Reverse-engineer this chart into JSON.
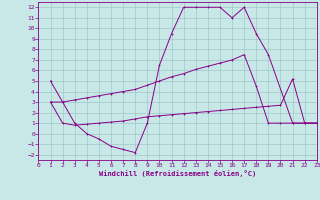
{
  "xlabel": "Windchill (Refroidissement éolien,°C)",
  "background_color": "#c8e8e8",
  "grid_color": "#a0c8c8",
  "line_color": "#880088",
  "xlim": [
    0,
    23
  ],
  "ylim": [
    -2.5,
    12.5
  ],
  "xticks": [
    0,
    1,
    2,
    3,
    4,
    5,
    6,
    7,
    8,
    9,
    10,
    11,
    12,
    13,
    14,
    15,
    16,
    17,
    18,
    19,
    20,
    21,
    22,
    23
  ],
  "yticks": [
    -2,
    -1,
    0,
    1,
    2,
    3,
    4,
    5,
    6,
    7,
    8,
    9,
    10,
    11,
    12
  ],
  "line1_x": [
    1,
    2,
    3,
    4,
    5,
    6,
    7,
    8,
    9,
    10,
    11,
    12,
    13,
    14,
    15,
    16,
    17,
    18,
    19,
    21,
    22,
    23
  ],
  "line1_y": [
    5,
    3,
    1,
    0,
    -0.5,
    -1.2,
    -1.5,
    -1.8,
    1,
    6.5,
    9.5,
    12,
    12,
    12,
    12,
    11,
    12,
    9.5,
    7.5,
    1,
    1,
    1
  ],
  "line2_x": [
    1,
    2,
    3,
    4,
    5,
    6,
    7,
    8,
    9,
    10,
    11,
    12,
    13,
    14,
    15,
    16,
    17,
    18,
    19,
    20,
    21,
    22,
    23
  ],
  "line2_y": [
    3,
    3,
    3.2,
    3.4,
    3.6,
    3.8,
    4.0,
    4.2,
    4.6,
    5.0,
    5.4,
    5.7,
    6.1,
    6.4,
    6.7,
    7.0,
    7.5,
    4.5,
    1,
    1,
    1,
    1,
    1
  ],
  "line3_x": [
    1,
    2,
    3,
    4,
    5,
    6,
    7,
    8,
    9,
    10,
    11,
    12,
    13,
    14,
    15,
    16,
    17,
    18,
    19,
    20,
    21,
    22,
    23
  ],
  "line3_y": [
    3,
    1,
    0.8,
    0.9,
    1.0,
    1.1,
    1.2,
    1.4,
    1.6,
    1.7,
    1.8,
    1.9,
    2.0,
    2.1,
    2.2,
    2.3,
    2.4,
    2.5,
    2.6,
    2.7,
    5.2,
    1,
    1
  ]
}
